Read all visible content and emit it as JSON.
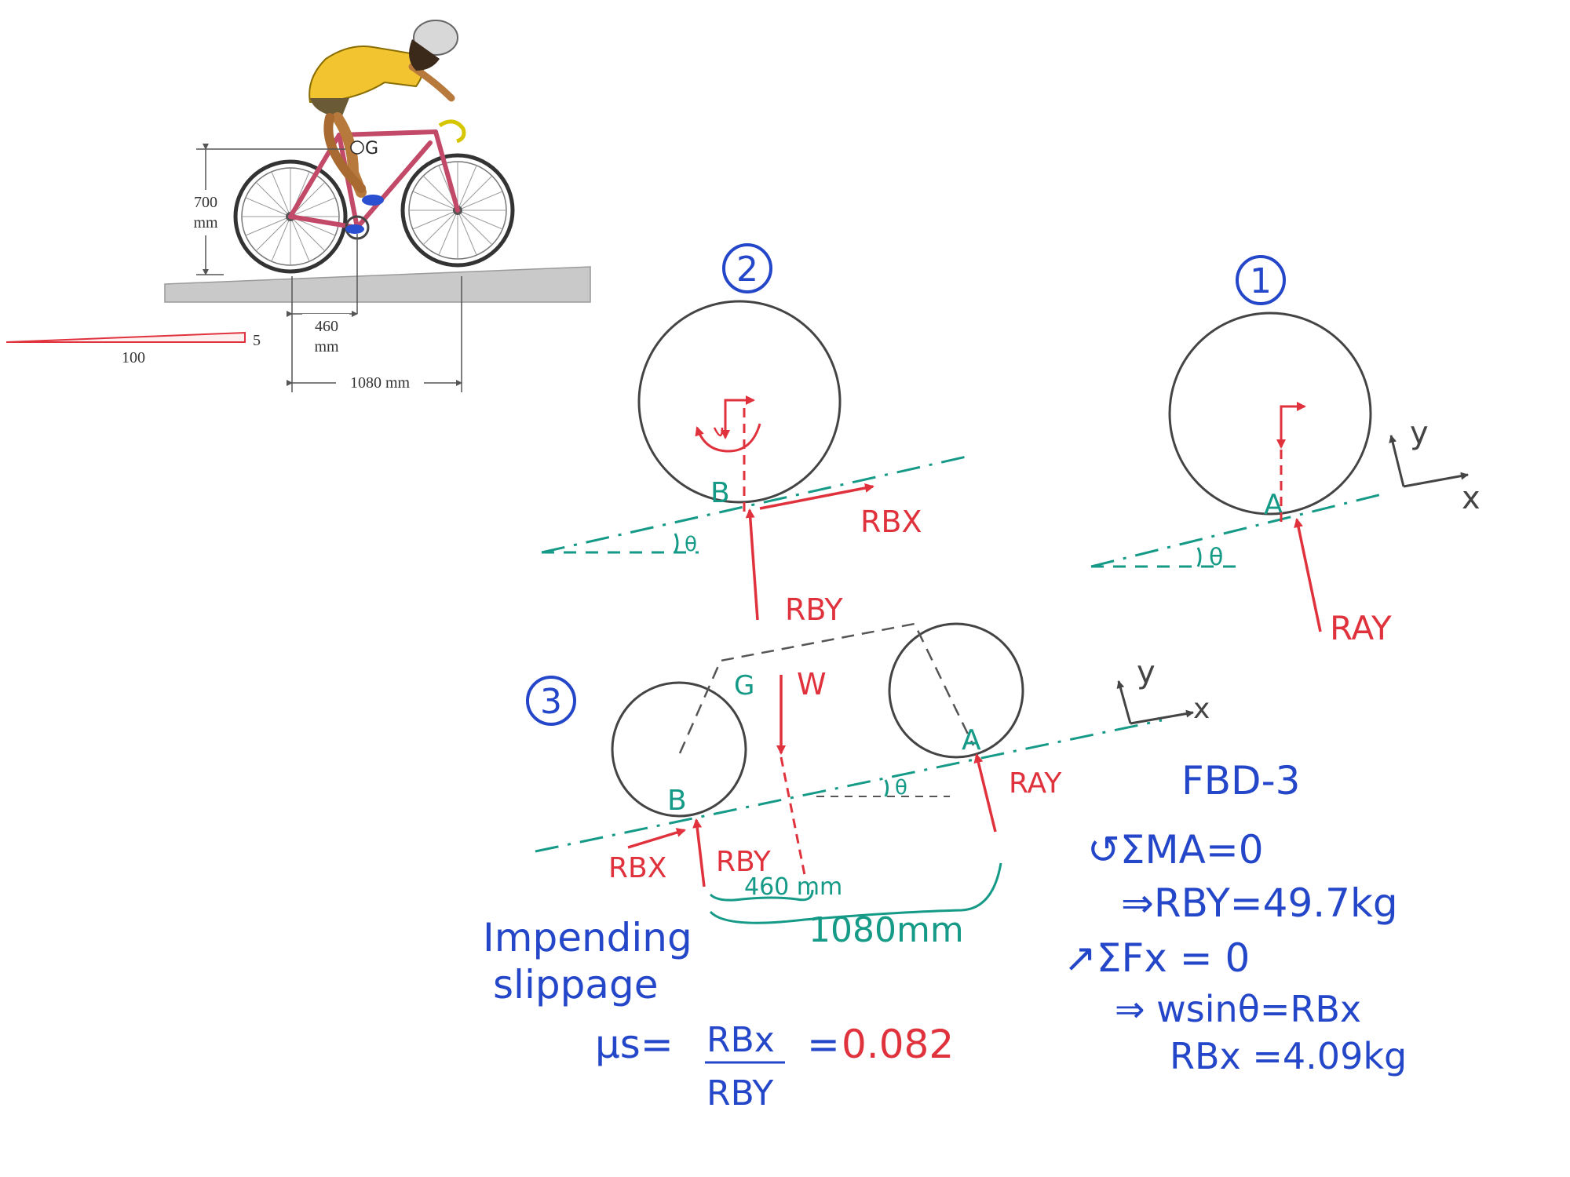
{
  "colors": {
    "ink_red": "#e0323c",
    "ink_blue": "#2446c8",
    "ink_teal": "#149a86",
    "ink_dark": "#444444",
    "ground": "#c9c9c9",
    "rider_shirt": "#f2c530",
    "bike_frame": "#c24a68"
  },
  "illustration": {
    "height_label": "700",
    "height_unit": "mm",
    "scale_short": "5",
    "scale_long": "100",
    "g_label": "G",
    "rear_label": "460",
    "rear_unit": "mm",
    "base_label": "1080 mm"
  },
  "fbd2": {
    "number": "2",
    "point": "B",
    "angle": "θ",
    "rbx": "RBX",
    "rby": "RBY"
  },
  "fbd1": {
    "number": "1",
    "point": "A",
    "angle": "θ",
    "ray": "RAY",
    "axis_y": "y",
    "axis_x": "x"
  },
  "fbd3": {
    "number": "3",
    "point_b": "B",
    "point_a": "A",
    "g_label": "G",
    "w_label": "W",
    "angle": "θ",
    "rbx": "RBX",
    "rby": "RBY",
    "ray": "RAY",
    "axis_y": "y",
    "axis_x": "x",
    "dim_460": "460 mm",
    "dim_1080": "1080mm"
  },
  "solution": {
    "title": "FBD-3",
    "eq1": "↺ΣMA=0",
    "eq1_result": "⇒RBY=49.7kg",
    "eq2": "↗ΣFx = 0",
    "eq2_step": "⇒ wsinθ=RBx",
    "eq2_result": "RBx =4.09kg",
    "impending_1": "Impending",
    "impending_2": "slippage",
    "mu_lhs": "μs=",
    "mu_num": "RBx",
    "mu_den": "RBY",
    "mu_eq": "=",
    "mu_value": "0.082"
  }
}
